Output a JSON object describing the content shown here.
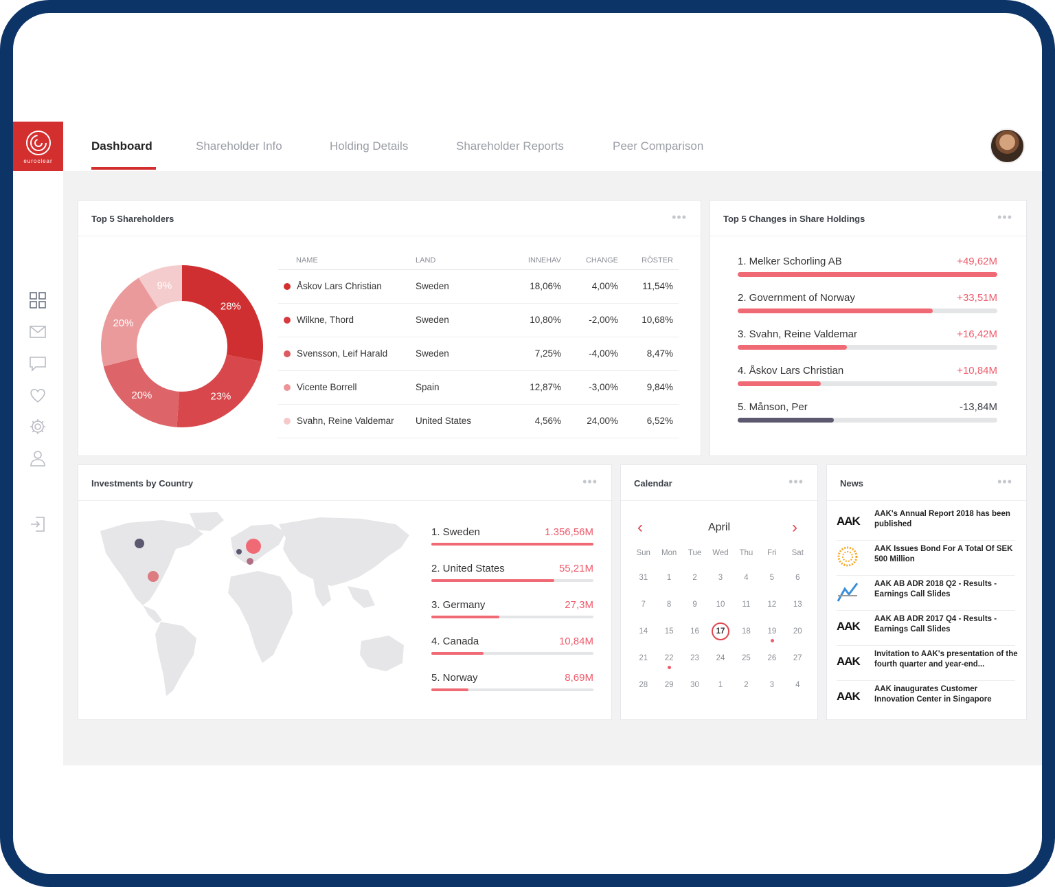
{
  "logo": {
    "text": "euroclear"
  },
  "nav": {
    "tabs": [
      "Dashboard",
      "Shareholder Info",
      "Holding Details",
      "Shareholder Reports",
      "Peer Comparison"
    ]
  },
  "sidebar": {
    "icons": [
      "grid-icon",
      "mail-icon",
      "chat-icon",
      "heart-icon",
      "gear-icon",
      "user-icon",
      "logout-icon"
    ]
  },
  "top_shareholders": {
    "title": "Top 5 Shareholders",
    "menu": "•••",
    "columns": [
      "NAME",
      "LAND",
      "INNEHAV",
      "CHANGE",
      "RÖSTER"
    ],
    "rows": [
      {
        "name": "Åskov Lars Christian",
        "land": "Sweden",
        "innehav": "18,06%",
        "change": "4,00%",
        "roster": "11,54%",
        "color": "#d32f2f"
      },
      {
        "name": "Wilkne, Thord",
        "land": "Sweden",
        "innehav": "10,80%",
        "change": "-2,00%",
        "roster": "10,68%",
        "color": "#d83a3f"
      },
      {
        "name": "Svensson, Leif Harald",
        "land": "Sweden",
        "innehav": "7,25%",
        "change": "-4,00%",
        "roster": "8,47%",
        "color": "#dd5b60"
      },
      {
        "name": "Vicente Borrell",
        "land": "Spain",
        "innehav": "12,87%",
        "change": "-3,00%",
        "roster": "9,84%",
        "color": "#ec9497"
      },
      {
        "name": "Svahn, Reine Valdemar",
        "land": "United States",
        "innehav": "4,56%",
        "change": "24,00%",
        "roster": "6,52%",
        "color": "#f5c8c9"
      }
    ]
  },
  "chart_data": {
    "type": "pie",
    "categories": [
      "28%",
      "23%",
      "20%",
      "20%",
      "9%"
    ],
    "values": [
      28,
      23,
      20,
      20,
      9
    ],
    "colors": [
      "#cf2f31",
      "#d7474b",
      "#dd6468",
      "#eb9a9c",
      "#f5cccd"
    ]
  },
  "top_changes": {
    "title": "Top 5 Changes in Share Holdings",
    "menu": "•••",
    "items": [
      {
        "label": "1. Melker Schorling AB",
        "value": "+49,62M",
        "fill": 1.0,
        "negative": false
      },
      {
        "label": "2. Government of Norway",
        "value": "+33,51M",
        "fill": 0.75,
        "negative": false
      },
      {
        "label": "3. Svahn, Reine Valdemar",
        "value": "+16,42M",
        "fill": 0.42,
        "negative": false
      },
      {
        "label": "4. Åskov Lars Christian",
        "value": "+10,84M",
        "fill": 0.32,
        "negative": false
      },
      {
        "label": "5. Månson, Per",
        "value": "-13,84M",
        "fill": 0.37,
        "negative": true
      }
    ]
  },
  "investments": {
    "title": "Investments by Country",
    "menu": "•••",
    "items": [
      {
        "label": "1. Sweden",
        "value": "1.356,56M",
        "fill": 1.0
      },
      {
        "label": "2. United States",
        "value": "55,21M",
        "fill": 0.76
      },
      {
        "label": "3. Germany",
        "value": "27,3M",
        "fill": 0.42
      },
      {
        "label": "4. Canada",
        "value": "10,84M",
        "fill": 0.32
      },
      {
        "label": "5. Norway",
        "value": "8,69M",
        "fill": 0.23
      }
    ]
  },
  "calendar": {
    "title": "Calendar",
    "menu": "•••",
    "month": "April",
    "prev": "‹",
    "next": "›",
    "weekdays": [
      "Sun",
      "Mon",
      "Tue",
      "Wed",
      "Thu",
      "Fri",
      "Sat"
    ],
    "days": [
      "31",
      "1",
      "2",
      "3",
      "4",
      "5",
      "6",
      "7",
      "8",
      "9",
      "10",
      "11",
      "12",
      "13",
      "14",
      "15",
      "16",
      "17",
      "18",
      "19",
      "20",
      "21",
      "22",
      "23",
      "24",
      "25",
      "26",
      "27",
      "28",
      "29",
      "30",
      "1",
      "2",
      "3",
      "4"
    ],
    "selected": "17",
    "event_days": [
      "19",
      "22"
    ]
  },
  "news": {
    "title": "News",
    "menu": "•••",
    "items": [
      {
        "logo": "AAK",
        "text": "AAK's Annual Report 2018 has been published"
      },
      {
        "logo": "sun",
        "text": "AAK Issues Bond For A Total Of SEK 500 Million"
      },
      {
        "logo": "chart",
        "text": "AAK AB ADR 2018 Q2 - Results - Earnings Call Slides"
      },
      {
        "logo": "AAK",
        "text": "AAK AB ADR 2017 Q4 - Results - Earnings Call Slides"
      },
      {
        "logo": "AAK",
        "text": "Invitation to AAK's presentation of the fourth quarter and year-end..."
      },
      {
        "logo": "AAK",
        "text": "AAK inaugurates Customer Innovation Center in Singapore"
      }
    ]
  }
}
